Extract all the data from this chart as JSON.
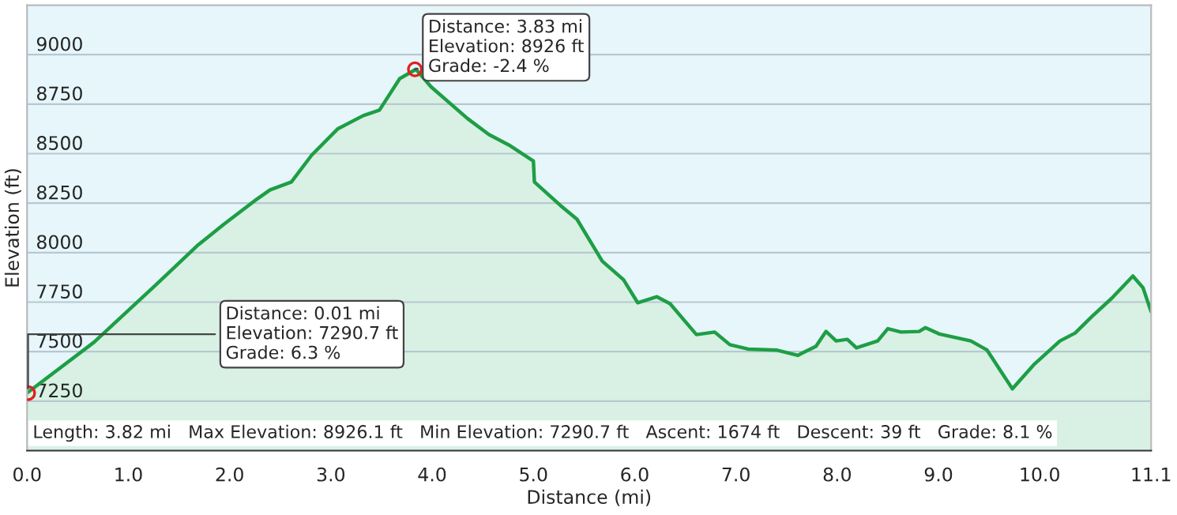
{
  "chart_data": {
    "type": "area",
    "xlabel": "Distance (mi)",
    "ylabel": "Elevation (ft)",
    "x": [
      0.0,
      0.66,
      1.27,
      1.68,
      1.94,
      2.25,
      2.4,
      2.61,
      2.81,
      3.07,
      3.32,
      3.48,
      3.68,
      3.84,
      3.99,
      4.35,
      4.56,
      4.76,
      5.0,
      5.01,
      5.27,
      5.43,
      5.68,
      5.89,
      6.03,
      6.22,
      6.35,
      6.61,
      6.79,
      6.94,
      7.12,
      7.4,
      7.61,
      7.79,
      7.89,
      7.99,
      8.1,
      8.19,
      8.4,
      8.5,
      8.63,
      8.81,
      8.87,
      9.01,
      9.32,
      9.48,
      9.73,
      9.94,
      10.2,
      10.35,
      10.51,
      10.71,
      10.92,
      11.02,
      11.1
    ],
    "series": [
      {
        "color": "#1e9e45",
        "values": [
          7291,
          7547,
          7836,
          8035,
          8142,
          8263,
          8317,
          8357,
          8492,
          8626,
          8692,
          8720,
          8879,
          8926,
          8837,
          8677,
          8597,
          8543,
          8463,
          8357,
          8237,
          8169,
          7957,
          7863,
          7747,
          7777,
          7742,
          7586,
          7599,
          7535,
          7513,
          7508,
          7481,
          7527,
          7602,
          7554,
          7562,
          7519,
          7554,
          7616,
          7599,
          7602,
          7621,
          7589,
          7554,
          7508,
          7312,
          7433,
          7554,
          7594,
          7675,
          7769,
          7882,
          7823,
          7702
        ]
      }
    ],
    "xlim": [
      0,
      11.1
    ],
    "ylim": [
      7000,
      9250
    ],
    "xticks": [
      {
        "value": 0,
        "label": "0.0"
      },
      {
        "value": 1,
        "label": "1.0"
      },
      {
        "value": 2,
        "label": "2.0"
      },
      {
        "value": 3,
        "label": "3.0"
      },
      {
        "value": 4,
        "label": "4.0"
      },
      {
        "value": 5,
        "label": "5.0"
      },
      {
        "value": 6,
        "label": "6.0"
      },
      {
        "value": 7,
        "label": "7.0"
      },
      {
        "value": 8,
        "label": "8.0"
      },
      {
        "value": 9,
        "label": "9.0"
      },
      {
        "value": 10,
        "label": "10.0"
      },
      {
        "value": 11.1,
        "label": "11.1"
      }
    ],
    "yticks": [
      7250,
      7500,
      7750,
      8000,
      8250,
      8500,
      8750,
      9000
    ],
    "grid": "y",
    "legend": false,
    "annotations": [
      {
        "text": "Distance: 3.83 mi\nElevation: 8926 ft\nGrade: -2.4 %",
        "x": 3.83,
        "y": 8926
      },
      {
        "text": "Distance: 0.01 mi\nElevation: 7290.7 ft\nGrade: 6.3 %",
        "x": 0.01,
        "y": 7290.7
      },
      "Length: 3.82 mi   Max Elevation: 8926.1 ft   Min Elevation: 7290.7 ft   Ascent: 1674 ft   Descent: 39 ft   Grade: 8.1 %"
    ]
  }
}
